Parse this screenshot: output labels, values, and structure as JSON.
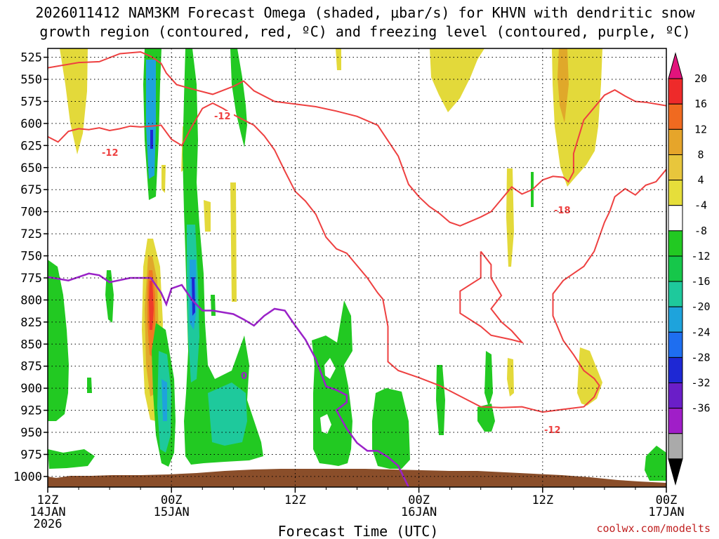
{
  "chart_data": {
    "type": "heatmap",
    "title_line1": "2026011412 NAM3KM Forecast Omega (shaded, μbar/s) for KHVN with dendritic snow",
    "title_line2": "growth region (contoured, red, ºC) and freezing level (contoured, purple, ºC)",
    "xlabel": "Forecast Time (UTC)",
    "watermark": "coolwx.com/modelts",
    "x_ticks": [
      {
        "hour": 0,
        "line1": "12Z",
        "line2": "14JAN",
        "line3": "2026"
      },
      {
        "hour": 12,
        "line1": "00Z",
        "line2": "15JAN",
        "line3": ""
      },
      {
        "hour": 24,
        "line1": "12Z",
        "line2": "",
        "line3": ""
      },
      {
        "hour": 36,
        "line1": "00Z",
        "line2": "16JAN",
        "line3": ""
      },
      {
        "hour": 48,
        "line1": "12Z",
        "line2": "",
        "line3": ""
      },
      {
        "hour": 60,
        "line1": "00Z",
        "line2": "17JAN",
        "line3": ""
      }
    ],
    "x_range_hours": [
      0,
      60
    ],
    "y_range_hpa": [
      1012,
      515
    ],
    "y_ticks": [
      "525",
      "550",
      "575",
      "600",
      "625",
      "650",
      "675",
      "700",
      "725",
      "750",
      "775",
      "800",
      "825",
      "850",
      "875",
      "900",
      "925",
      "950",
      "975",
      "1000"
    ],
    "colorbar": {
      "unit": "μbar/s",
      "labels": [
        "20",
        "16",
        "12",
        "8",
        "4",
        "-4",
        "-8",
        "-12",
        "-16",
        "-20",
        "-24",
        "-28",
        "-32",
        "-36"
      ],
      "colors": [
        "#e2137c",
        "#ee2a2a",
        "#f06a20",
        "#e6a52a",
        "#e8c63c",
        "#e6de3a",
        "#ffffff",
        "#22c922",
        "#16c74a",
        "#1ec99c",
        "#1ea3dc",
        "#1e6ef0",
        "#1e28d4",
        "#6a1ec8",
        "#a01ec8",
        "#aaaaaa",
        "#000000"
      ]
    },
    "contour_labels": {
      "dgz_a": "-12",
      "dgz_b": "-12",
      "dgz_c": "-18",
      "dgz_d": "-12",
      "freezing": "0"
    },
    "dgz_lower_line": [
      [
        0,
        537
      ],
      [
        3,
        531
      ],
      [
        5,
        530
      ],
      [
        7,
        521
      ],
      [
        9,
        519
      ],
      [
        10,
        524
      ],
      [
        11,
        532
      ],
      [
        11.5,
        543
      ],
      [
        12.5,
        556
      ],
      [
        14,
        561
      ],
      [
        16,
        567
      ],
      [
        18,
        558
      ],
      [
        19,
        552
      ],
      [
        20,
        563
      ],
      [
        22,
        575
      ],
      [
        24,
        578
      ],
      [
        26,
        581
      ],
      [
        28,
        586
      ],
      [
        30,
        592
      ],
      [
        32,
        602
      ],
      [
        34,
        637
      ],
      [
        35,
        669
      ],
      [
        36,
        683
      ],
      [
        37,
        694
      ],
      [
        38,
        702
      ],
      [
        39,
        712
      ],
      [
        40,
        716
      ],
      [
        42,
        706
      ],
      [
        43,
        700
      ],
      [
        44,
        686
      ],
      [
        45,
        672
      ],
      [
        46,
        680
      ],
      [
        47,
        675
      ],
      [
        48,
        664
      ],
      [
        49,
        660
      ],
      [
        50,
        661
      ],
      [
        50.5,
        666
      ],
      [
        51,
        655
      ],
      [
        51,
        634
      ],
      [
        52,
        596
      ],
      [
        53,
        582
      ],
      [
        54,
        568
      ],
      [
        55,
        562
      ],
      [
        56,
        569
      ],
      [
        57,
        575
      ],
      [
        58,
        576
      ],
      [
        60,
        580
      ]
    ],
    "dgz_upper_line": [
      [
        0,
        615
      ],
      [
        1,
        621
      ],
      [
        2,
        609
      ],
      [
        3,
        606
      ],
      [
        4,
        607
      ],
      [
        5,
        605
      ],
      [
        6,
        608
      ],
      [
        7,
        606
      ],
      [
        8,
        603
      ],
      [
        9,
        604
      ],
      [
        10,
        603
      ],
      [
        11,
        602
      ],
      [
        12,
        618
      ],
      [
        13,
        625
      ],
      [
        14,
        603
      ],
      [
        15,
        583
      ],
      [
        16,
        577
      ],
      [
        17,
        583
      ],
      [
        18,
        590
      ],
      [
        19,
        596
      ],
      [
        20,
        602
      ],
      [
        21,
        614
      ],
      [
        22,
        630
      ],
      [
        23,
        654
      ],
      [
        24,
        677
      ],
      [
        25,
        688
      ],
      [
        26,
        703
      ],
      [
        27,
        729
      ],
      [
        28,
        742
      ],
      [
        29,
        747
      ],
      [
        30,
        761
      ],
      [
        31,
        775
      ],
      [
        32,
        792
      ],
      [
        32.5,
        799
      ],
      [
        33,
        830
      ],
      [
        33,
        870
      ],
      [
        34,
        880
      ],
      [
        36,
        888
      ],
      [
        38,
        897
      ],
      [
        40,
        909
      ],
      [
        42,
        921
      ],
      [
        44,
        922
      ],
      [
        46,
        921
      ],
      [
        48,
        927
      ],
      [
        50,
        924
      ],
      [
        52,
        921
      ],
      [
        53,
        910
      ],
      [
        53.5,
        897
      ],
      [
        53,
        889
      ],
      [
        52,
        880
      ],
      [
        51,
        862
      ],
      [
        50,
        846
      ],
      [
        49,
        818
      ],
      [
        49,
        793
      ],
      [
        50,
        778
      ],
      [
        52,
        762
      ],
      [
        53,
        745
      ],
      [
        54,
        712
      ],
      [
        54.5,
        700
      ],
      [
        55,
        683
      ],
      [
        56,
        674
      ],
      [
        57,
        681
      ],
      [
        58,
        670
      ],
      [
        59,
        666
      ],
      [
        60,
        652
      ]
    ],
    "dgz_inner_loop": [
      [
        42,
        745
      ],
      [
        42,
        775
      ],
      [
        40,
        790
      ],
      [
        40,
        815
      ],
      [
        42,
        830
      ],
      [
        43,
        840
      ],
      [
        45,
        845
      ],
      [
        46,
        848
      ],
      [
        45,
        835
      ],
      [
        44,
        825
      ],
      [
        43,
        810
      ],
      [
        44,
        795
      ],
      [
        43,
        775
      ],
      [
        43,
        760
      ],
      [
        42,
        745
      ]
    ],
    "freezing_line": [
      [
        0,
        774
      ],
      [
        2,
        778
      ],
      [
        4,
        770
      ],
      [
        5,
        772
      ],
      [
        6,
        780
      ],
      [
        8,
        775
      ],
      [
        10,
        775
      ],
      [
        11,
        792
      ],
      [
        11.5,
        805
      ],
      [
        12,
        787
      ],
      [
        13,
        783
      ],
      [
        14,
        800
      ],
      [
        15,
        812
      ],
      [
        16,
        812
      ],
      [
        18,
        816
      ],
      [
        19,
        822
      ],
      [
        20,
        829
      ],
      [
        21,
        818
      ],
      [
        22,
        810
      ],
      [
        23,
        812
      ],
      [
        24,
        829
      ],
      [
        25,
        845
      ],
      [
        26,
        867
      ],
      [
        27,
        898
      ],
      [
        28,
        902
      ],
      [
        29,
        908
      ],
      [
        29,
        916
      ],
      [
        28,
        925
      ],
      [
        29,
        946
      ],
      [
        30,
        962
      ],
      [
        31,
        971
      ],
      [
        32,
        971
      ],
      [
        33,
        978
      ],
      [
        34,
        988
      ],
      [
        35,
        1012
      ]
    ]
  }
}
